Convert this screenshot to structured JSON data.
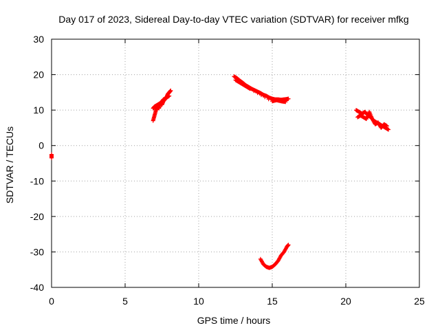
{
  "chart_data": {
    "type": "scatter",
    "title": "Day 017 of 2023, Sidereal Day-to-day VTEC variation (SDTVAR) for receiver mfkg",
    "xlabel": "GPS time / hours",
    "ylabel": "SDTVAR / TECUs",
    "xlim": [
      0,
      25
    ],
    "ylim": [
      -40,
      30
    ],
    "xticks": [
      0,
      5,
      10,
      15,
      20,
      25
    ],
    "yticks": [
      -40,
      -30,
      -20,
      -10,
      0,
      10,
      20,
      30
    ],
    "grid": true,
    "marker": "+",
    "series": [
      {
        "name": "SDTVAR",
        "color": "#ff0000",
        "segments": [
          {
            "x": [
              0.0,
              0.0
            ],
            "y": [
              -2.5,
              -3.5
            ]
          },
          {
            "x": [
              6.9,
              7.0,
              7.1,
              7.2,
              7.3,
              7.4,
              7.5,
              7.6,
              7.7,
              7.8,
              7.9,
              8.0,
              8.1
            ],
            "y": [
              7.0,
              8.5,
              10.0,
              11.0,
              10.5,
              12.0,
              11.5,
              12.5,
              13.0,
              13.5,
              14.5,
              15.0,
              15.5
            ]
          },
          {
            "x": [
              6.9,
              7.0,
              7.2,
              7.4,
              7.6,
              7.8,
              8.0
            ],
            "y": [
              10.5,
              11.0,
              11.5,
              12.0,
              13.0,
              13.5,
              14.0
            ]
          },
          {
            "x": [
              12.4,
              12.6,
              12.8,
              13.0,
              13.2,
              13.4,
              13.6,
              13.8,
              14.0,
              14.2,
              14.4,
              14.6,
              14.8,
              15.0,
              15.2,
              15.4,
              15.6,
              15.8,
              16.0,
              16.1
            ],
            "y": [
              19.5,
              19.0,
              18.3,
              17.7,
              17.0,
              16.5,
              16.0,
              15.6,
              15.2,
              14.8,
              14.3,
              14.0,
              13.5,
              13.2,
              13.0,
              13.0,
              12.9,
              13.0,
              13.1,
              13.2
            ]
          },
          {
            "x": [
              12.5,
              12.7,
              12.9,
              13.1,
              13.3,
              13.5,
              15.0,
              15.3,
              15.6,
              15.9
            ],
            "y": [
              18.5,
              18.0,
              17.5,
              17.0,
              16.5,
              16.0,
              12.5,
              12.8,
              12.5,
              12.3
            ]
          },
          {
            "x": [
              14.2,
              14.4,
              14.6,
              14.8,
              15.0,
              15.2,
              15.4,
              15.6,
              15.8,
              16.0,
              16.1
            ],
            "y": [
              -32.0,
              -33.5,
              -34.2,
              -34.5,
              -34.2,
              -33.5,
              -32.5,
              -31.0,
              -30.0,
              -28.5,
              -28.0
            ]
          },
          {
            "x": [
              20.7,
              20.9,
              21.1,
              21.3,
              21.5,
              21.7,
              21.9,
              22.1,
              22.3,
              22.5,
              22.7,
              22.9
            ],
            "y": [
              10.0,
              9.5,
              9.0,
              9.5,
              8.5,
              8.0,
              7.0,
              6.5,
              6.0,
              5.5,
              5.0,
              4.5
            ]
          },
          {
            "x": [
              20.8,
              21.0,
              21.2,
              21.4,
              21.6,
              21.8,
              22.0,
              22.2,
              22.4,
              22.6,
              22.8
            ],
            "y": [
              8.0,
              8.5,
              8.0,
              7.5,
              9.5,
              7.5,
              6.0,
              6.5,
              5.0,
              6.0,
              5.5
            ]
          }
        ]
      }
    ]
  }
}
